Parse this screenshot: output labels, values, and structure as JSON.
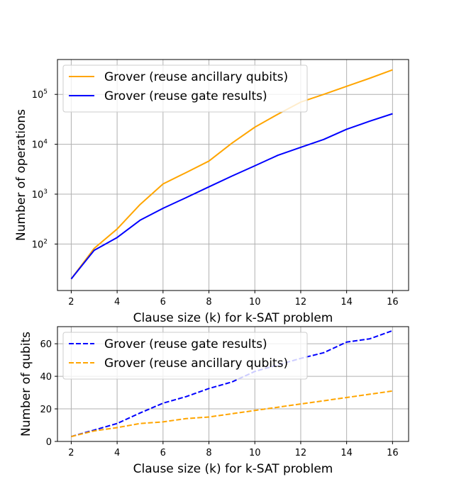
{
  "chart_data": [
    {
      "type": "line",
      "xlabel": "Clause size (k) for k-SAT problem",
      "ylabel": "Number of operations",
      "yscale": "log",
      "xlim": [
        1.4,
        16.7
      ],
      "ylim": [
        11.7,
        500000
      ],
      "xticks": [
        2,
        4,
        6,
        8,
        10,
        12,
        14,
        16
      ],
      "yticks": [
        {
          "value": 100,
          "base": "10",
          "exp": "2"
        },
        {
          "value": 1000,
          "base": "10",
          "exp": "3"
        },
        {
          "value": 10000,
          "base": "10",
          "exp": "4"
        },
        {
          "value": 100000,
          "base": "10",
          "exp": "5"
        }
      ],
      "grid": true,
      "legend_position": "upper-left",
      "series": [
        {
          "name": "Grover (reuse ancillary qubits)",
          "color": "#FFA500",
          "dash": "solid",
          "x": [
            2,
            3,
            4,
            5,
            6,
            7,
            8,
            9,
            10,
            11,
            12,
            13,
            14,
            15,
            16
          ],
          "y": [
            20,
            82,
            200,
            620,
            1600,
            2700,
            4600,
            10500,
            22000,
            40000,
            70000,
            100000,
            145000,
            210000,
            310000
          ]
        },
        {
          "name": "Grover (reuse gate results)",
          "color": "#0000FF",
          "dash": "solid",
          "x": [
            2,
            3,
            4,
            5,
            6,
            7,
            8,
            9,
            10,
            11,
            12,
            13,
            14,
            15,
            16
          ],
          "y": [
            20,
            75,
            135,
            300,
            520,
            850,
            1400,
            2300,
            3700,
            6000,
            8700,
            12500,
            20000,
            29000,
            41000
          ]
        }
      ]
    },
    {
      "type": "line",
      "xlabel": "Clause size (k) for k-SAT problem",
      "ylabel": "Number of qubits",
      "yscale": "linear",
      "xlim": [
        1.4,
        16.7
      ],
      "ylim": [
        0,
        70.5
      ],
      "xticks": [
        2,
        4,
        6,
        8,
        10,
        12,
        14,
        16
      ],
      "yticks": [
        0,
        20,
        40,
        60
      ],
      "grid": true,
      "legend_position": "upper-left",
      "series": [
        {
          "name": "Grover (reuse gate results)",
          "color": "#0000FF",
          "dash": "dashed",
          "x": [
            2,
            3,
            4,
            5,
            6,
            7,
            8,
            9,
            10,
            11,
            12,
            13,
            14,
            15,
            16
          ],
          "y": [
            3,
            7,
            11,
            17.5,
            23.5,
            27.5,
            32.5,
            36.5,
            43,
            47,
            51,
            54.5,
            61,
            63,
            68
          ]
        },
        {
          "name": "Grover (reuse ancillary qubits)",
          "color": "#FFA500",
          "dash": "dashed",
          "x": [
            2,
            3,
            4,
            5,
            6,
            7,
            8,
            9,
            10,
            11,
            12,
            13,
            14,
            15,
            16
          ],
          "y": [
            3,
            6.5,
            8.5,
            11,
            12,
            14,
            15,
            17,
            19,
            21,
            23,
            25,
            27,
            29,
            31
          ]
        }
      ]
    }
  ]
}
